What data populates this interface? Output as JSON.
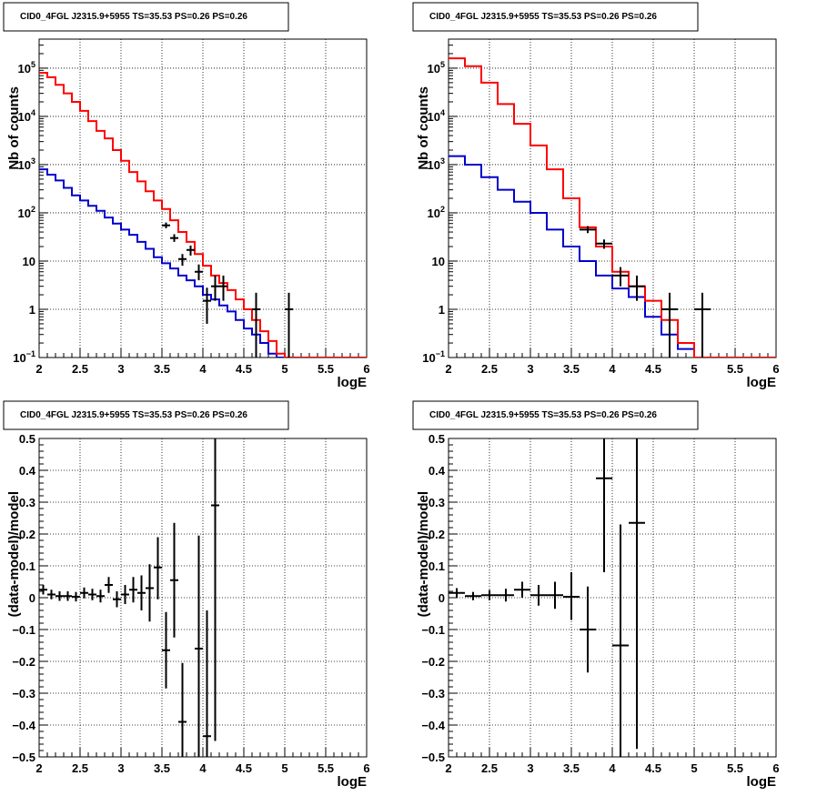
{
  "chart_data": [
    {
      "type": "line",
      "title": "CID0_4FGL J2315.9+5955 TS=35.53 PS=0.26 PS=0.26",
      "xlabel": "logE",
      "ylabel": "Nb of counts",
      "xlim": [
        2,
        6
      ],
      "ylim": [
        0.1,
        400000
      ],
      "yscale": "log",
      "grid": true,
      "xticks": [
        "2",
        "2.5",
        "3",
        "3.5",
        "4",
        "4.5",
        "5",
        "5.5",
        "6"
      ],
      "yticks": [
        {
          "value": 0.1,
          "label": "10",
          "sup": "−1"
        },
        {
          "value": 1,
          "label": "1",
          "sup": ""
        },
        {
          "value": 10,
          "label": "10",
          "sup": ""
        },
        {
          "value": 100,
          "label": "10",
          "sup": "2"
        },
        {
          "value": 1000,
          "label": "10",
          "sup": "3"
        },
        {
          "value": 10000,
          "label": "10",
          "sup": "4"
        },
        {
          "value": 100000,
          "label": "10",
          "sup": "5"
        }
      ],
      "bin_edges": [
        2.0,
        2.1,
        2.2,
        2.3,
        2.4,
        2.5,
        2.6,
        2.7,
        2.8,
        2.9,
        3.0,
        3.1,
        3.2,
        3.3,
        3.4,
        3.5,
        3.6,
        3.7,
        3.8,
        3.9,
        4.0,
        4.1,
        4.2,
        4.3,
        4.4,
        4.5,
        4.6,
        4.7,
        4.8,
        4.9,
        5.0,
        5.1,
        5.2,
        5.3,
        5.4,
        5.5,
        5.6,
        5.7,
        5.8,
        5.9,
        6.0
      ],
      "series": [
        {
          "color": "#0000cc",
          "style": "step",
          "values": [
            800,
            620,
            470,
            330,
            230,
            180,
            140,
            110,
            80,
            60,
            45,
            35,
            25,
            18,
            12,
            9,
            7,
            5,
            4,
            3,
            2,
            1.6,
            1.2,
            0.9,
            0.6,
            0.4,
            0.3,
            0.2,
            0.12,
            0.1,
            0.1,
            0.1,
            0.1,
            0.1,
            0.1,
            0.1,
            0.1,
            0.1,
            0.1,
            0.1
          ]
        },
        {
          "color": "#ff0000",
          "style": "step",
          "values": [
            80000,
            65000,
            45000,
            30000,
            20000,
            13000,
            8000,
            5000,
            3500,
            2000,
            1200,
            700,
            450,
            280,
            180,
            120,
            70,
            40,
            25,
            14,
            8,
            5,
            3.5,
            2.5,
            1.6,
            1,
            0.6,
            0.35,
            0.22,
            0.12,
            0.1,
            0.1,
            0.1,
            0.1,
            0.1,
            0.1,
            0.1,
            0.1,
            0.1,
            0.1
          ]
        }
      ],
      "points": [
        {
          "x": 3.55,
          "y": 55,
          "xerr": 0.05,
          "ylo": 48,
          "yhi": 63
        },
        {
          "x": 3.65,
          "y": 30,
          "xerr": 0.05,
          "ylo": 25,
          "yhi": 36
        },
        {
          "x": 3.75,
          "y": 11,
          "xerr": 0.05,
          "ylo": 8,
          "yhi": 14
        },
        {
          "x": 3.85,
          "y": 17,
          "xerr": 0.05,
          "ylo": 13,
          "yhi": 21
        },
        {
          "x": 3.95,
          "y": 6,
          "xerr": 0.05,
          "ylo": 4,
          "yhi": 8.5
        },
        {
          "x": 4.05,
          "y": 1.5,
          "xerr": 0.05,
          "ylo": 0.5,
          "yhi": 2.8
        },
        {
          "x": 4.15,
          "y": 3,
          "xerr": 0.05,
          "ylo": 1.5,
          "yhi": 5
        },
        {
          "x": 4.25,
          "y": 3,
          "xerr": 0.05,
          "ylo": 1.5,
          "yhi": 5
        },
        {
          "x": 4.65,
          "y": 1,
          "xerr": 0.05,
          "ylo": 0.1,
          "yhi": 2.2
        },
        {
          "x": 5.05,
          "y": 1,
          "xerr": 0.05,
          "ylo": 0.1,
          "yhi": 2.2
        }
      ]
    },
    {
      "type": "line",
      "title": "CID0_4FGL J2315.9+5955 TS=35.53 PS=0.26 PS=0.26",
      "xlabel": "logE",
      "ylabel": "Nb of counts",
      "xlim": [
        2,
        6
      ],
      "ylim": [
        0.1,
        400000
      ],
      "yscale": "log",
      "grid": true,
      "xticks": [
        "2",
        "2.5",
        "3",
        "3.5",
        "4",
        "4.5",
        "5",
        "5.5",
        "6"
      ],
      "yticks": [
        {
          "value": 0.1,
          "label": "10",
          "sup": "−1"
        },
        {
          "value": 1,
          "label": "1",
          "sup": ""
        },
        {
          "value": 10,
          "label": "10",
          "sup": ""
        },
        {
          "value": 100,
          "label": "10",
          "sup": "2"
        },
        {
          "value": 1000,
          "label": "10",
          "sup": "3"
        },
        {
          "value": 10000,
          "label": "10",
          "sup": "4"
        },
        {
          "value": 100000,
          "label": "10",
          "sup": "5"
        }
      ],
      "bin_edges": [
        2.0,
        2.2,
        2.4,
        2.6,
        2.8,
        3.0,
        3.2,
        3.4,
        3.6,
        3.8,
        4.0,
        4.2,
        4.4,
        4.6,
        4.8,
        5.0,
        5.2,
        5.4,
        5.6,
        5.8,
        6.0
      ],
      "series": [
        {
          "color": "#0000cc",
          "style": "step",
          "values": [
            1500,
            1000,
            550,
            300,
            170,
            100,
            45,
            20,
            10,
            5,
            2.7,
            1.8,
            0.7,
            0.3,
            0.15,
            0.1,
            0.1,
            0.1,
            0.1,
            0.1
          ]
        },
        {
          "color": "#ff0000",
          "style": "step",
          "values": [
            160000,
            110000,
            50000,
            18000,
            7000,
            2500,
            800,
            200,
            50,
            20,
            6,
            3,
            1.5,
            0.6,
            0.2,
            0.1,
            0.1,
            0.1,
            0.1,
            0.1
          ]
        }
      ],
      "points": [
        {
          "x": 3.7,
          "y": 45,
          "xerr": 0.1,
          "ylo": 38,
          "yhi": 53
        },
        {
          "x": 3.9,
          "y": 23,
          "xerr": 0.1,
          "ylo": 18,
          "yhi": 28
        },
        {
          "x": 4.1,
          "y": 5,
          "xerr": 0.1,
          "ylo": 3,
          "yhi": 7.5
        },
        {
          "x": 4.3,
          "y": 3,
          "xerr": 0.1,
          "ylo": 1.5,
          "yhi": 5
        },
        {
          "x": 4.7,
          "y": 1,
          "xerr": 0.1,
          "ylo": 0.1,
          "yhi": 2.2
        },
        {
          "x": 5.1,
          "y": 1,
          "xerr": 0.1,
          "ylo": 0.1,
          "yhi": 2.2
        }
      ]
    },
    {
      "type": "scatter",
      "title": "CID0_4FGL J2315.9+5955 TS=35.53 PS=0.26 PS=0.26",
      "xlabel": "logE",
      "ylabel": "(data-model)/model",
      "xlim": [
        2,
        6
      ],
      "ylim": [
        -0.5,
        0.5
      ],
      "yscale": "linear",
      "grid": true,
      "xticks": [
        "2",
        "2.5",
        "3",
        "3.5",
        "4",
        "4.5",
        "5",
        "5.5",
        "6"
      ],
      "yticks": [
        {
          "value": -0.5,
          "label": "−0.5",
          "sup": ""
        },
        {
          "value": -0.4,
          "label": "−0.4",
          "sup": ""
        },
        {
          "value": -0.3,
          "label": "−0.3",
          "sup": ""
        },
        {
          "value": -0.2,
          "label": "−0.2",
          "sup": ""
        },
        {
          "value": -0.1,
          "label": "−0.1",
          "sup": ""
        },
        {
          "value": 0,
          "label": "0",
          "sup": ""
        },
        {
          "value": 0.1,
          "label": "0.1",
          "sup": ""
        },
        {
          "value": 0.2,
          "label": "0.2",
          "sup": ""
        },
        {
          "value": 0.3,
          "label": "0.3",
          "sup": ""
        },
        {
          "value": 0.4,
          "label": "0.4",
          "sup": ""
        },
        {
          "value": 0.5,
          "label": "0.5",
          "sup": ""
        }
      ],
      "series": [],
      "points": [
        {
          "x": 2.05,
          "y": 0.025,
          "xerr": 0.05,
          "ylo": 0.01,
          "yhi": 0.04
        },
        {
          "x": 2.15,
          "y": 0.01,
          "xerr": 0.05,
          "ylo": -0.005,
          "yhi": 0.025
        },
        {
          "x": 2.25,
          "y": 0.005,
          "xerr": 0.05,
          "ylo": -0.01,
          "yhi": 0.02
        },
        {
          "x": 2.35,
          "y": 0.005,
          "xerr": 0.05,
          "ylo": -0.01,
          "yhi": 0.02
        },
        {
          "x": 2.45,
          "y": 0.003,
          "xerr": 0.05,
          "ylo": -0.012,
          "yhi": 0.018
        },
        {
          "x": 2.55,
          "y": 0.015,
          "xerr": 0.05,
          "ylo": -0.002,
          "yhi": 0.032
        },
        {
          "x": 2.65,
          "y": 0.01,
          "xerr": 0.05,
          "ylo": -0.008,
          "yhi": 0.028
        },
        {
          "x": 2.75,
          "y": 0.005,
          "xerr": 0.05,
          "ylo": -0.015,
          "yhi": 0.025
        },
        {
          "x": 2.85,
          "y": 0.04,
          "xerr": 0.05,
          "ylo": 0.015,
          "yhi": 0.065
        },
        {
          "x": 2.95,
          "y": -0.005,
          "xerr": 0.05,
          "ylo": -0.03,
          "yhi": 0.02
        },
        {
          "x": 3.05,
          "y": 0.01,
          "xerr": 0.05,
          "ylo": -0.02,
          "yhi": 0.04
        },
        {
          "x": 3.15,
          "y": 0.025,
          "xerr": 0.05,
          "ylo": -0.015,
          "yhi": 0.065
        },
        {
          "x": 3.25,
          "y": 0.015,
          "xerr": 0.05,
          "ylo": -0.04,
          "yhi": 0.07
        },
        {
          "x": 3.35,
          "y": 0.03,
          "xerr": 0.05,
          "ylo": -0.075,
          "yhi": 0.105
        },
        {
          "x": 3.45,
          "y": 0.095,
          "xerr": 0.05,
          "ylo": -0.005,
          "yhi": 0.19
        },
        {
          "x": 3.55,
          "y": -0.165,
          "xerr": 0.05,
          "ylo": -0.285,
          "yhi": -0.045
        },
        {
          "x": 3.65,
          "y": 0.055,
          "xerr": 0.05,
          "ylo": -0.125,
          "yhi": 0.235
        },
        {
          "x": 3.75,
          "y": -0.39,
          "xerr": 0.05,
          "ylo": -0.5,
          "yhi": -0.205
        },
        {
          "x": 3.95,
          "y": -0.16,
          "xerr": 0.05,
          "ylo": -0.5,
          "yhi": 0.195
        },
        {
          "x": 4.05,
          "y": -0.435,
          "xerr": 0.05,
          "ylo": -0.5,
          "yhi": -0.04
        },
        {
          "x": 4.15,
          "y": 0.29,
          "xerr": 0.05,
          "ylo": -0.45,
          "yhi": 0.5
        }
      ]
    },
    {
      "type": "scatter",
      "title": "CID0_4FGL J2315.9+5955 TS=35.53 PS=0.26 PS=0.26",
      "xlabel": "logE",
      "ylabel": "(data-model)/model",
      "xlim": [
        2,
        6
      ],
      "ylim": [
        -0.5,
        0.5
      ],
      "yscale": "linear",
      "grid": true,
      "xticks": [
        "2",
        "2.5",
        "3",
        "3.5",
        "4",
        "4.5",
        "5",
        "5.5",
        "6"
      ],
      "yticks": [
        {
          "value": -0.5,
          "label": "−0.5",
          "sup": ""
        },
        {
          "value": -0.4,
          "label": "−0.4",
          "sup": ""
        },
        {
          "value": -0.3,
          "label": "−0.3",
          "sup": ""
        },
        {
          "value": -0.2,
          "label": "−0.2",
          "sup": ""
        },
        {
          "value": -0.1,
          "label": "−0.1",
          "sup": ""
        },
        {
          "value": 0,
          "label": "0",
          "sup": ""
        },
        {
          "value": 0.1,
          "label": "0.1",
          "sup": ""
        },
        {
          "value": 0.2,
          "label": "0.2",
          "sup": ""
        },
        {
          "value": 0.3,
          "label": "0.3",
          "sup": ""
        },
        {
          "value": 0.4,
          "label": "0.4",
          "sup": ""
        },
        {
          "value": 0.5,
          "label": "0.5",
          "sup": ""
        }
      ],
      "series": [],
      "points": [
        {
          "x": 2.1,
          "y": 0.015,
          "xerr": 0.1,
          "ylo": 0.0,
          "yhi": 0.03
        },
        {
          "x": 2.3,
          "y": 0.005,
          "xerr": 0.1,
          "ylo": -0.008,
          "yhi": 0.018
        },
        {
          "x": 2.5,
          "y": 0.008,
          "xerr": 0.1,
          "ylo": -0.008,
          "yhi": 0.024
        },
        {
          "x": 2.7,
          "y": 0.008,
          "xerr": 0.1,
          "ylo": -0.012,
          "yhi": 0.028
        },
        {
          "x": 2.9,
          "y": 0.025,
          "xerr": 0.1,
          "ylo": 0.0,
          "yhi": 0.05
        },
        {
          "x": 3.1,
          "y": 0.008,
          "xerr": 0.1,
          "ylo": -0.025,
          "yhi": 0.04
        },
        {
          "x": 3.3,
          "y": 0.008,
          "xerr": 0.1,
          "ylo": -0.035,
          "yhi": 0.05
        },
        {
          "x": 3.5,
          "y": 0.003,
          "xerr": 0.1,
          "ylo": -0.07,
          "yhi": 0.08
        },
        {
          "x": 3.7,
          "y": -0.1,
          "xerr": 0.1,
          "ylo": -0.235,
          "yhi": 0.035
        },
        {
          "x": 3.9,
          "y": 0.375,
          "xerr": 0.1,
          "ylo": 0.08,
          "yhi": 0.5
        },
        {
          "x": 4.1,
          "y": -0.15,
          "xerr": 0.1,
          "ylo": -0.5,
          "yhi": 0.23
        },
        {
          "x": 4.3,
          "y": 0.235,
          "xerr": 0.1,
          "ylo": -0.475,
          "yhi": 0.5
        }
      ]
    }
  ]
}
